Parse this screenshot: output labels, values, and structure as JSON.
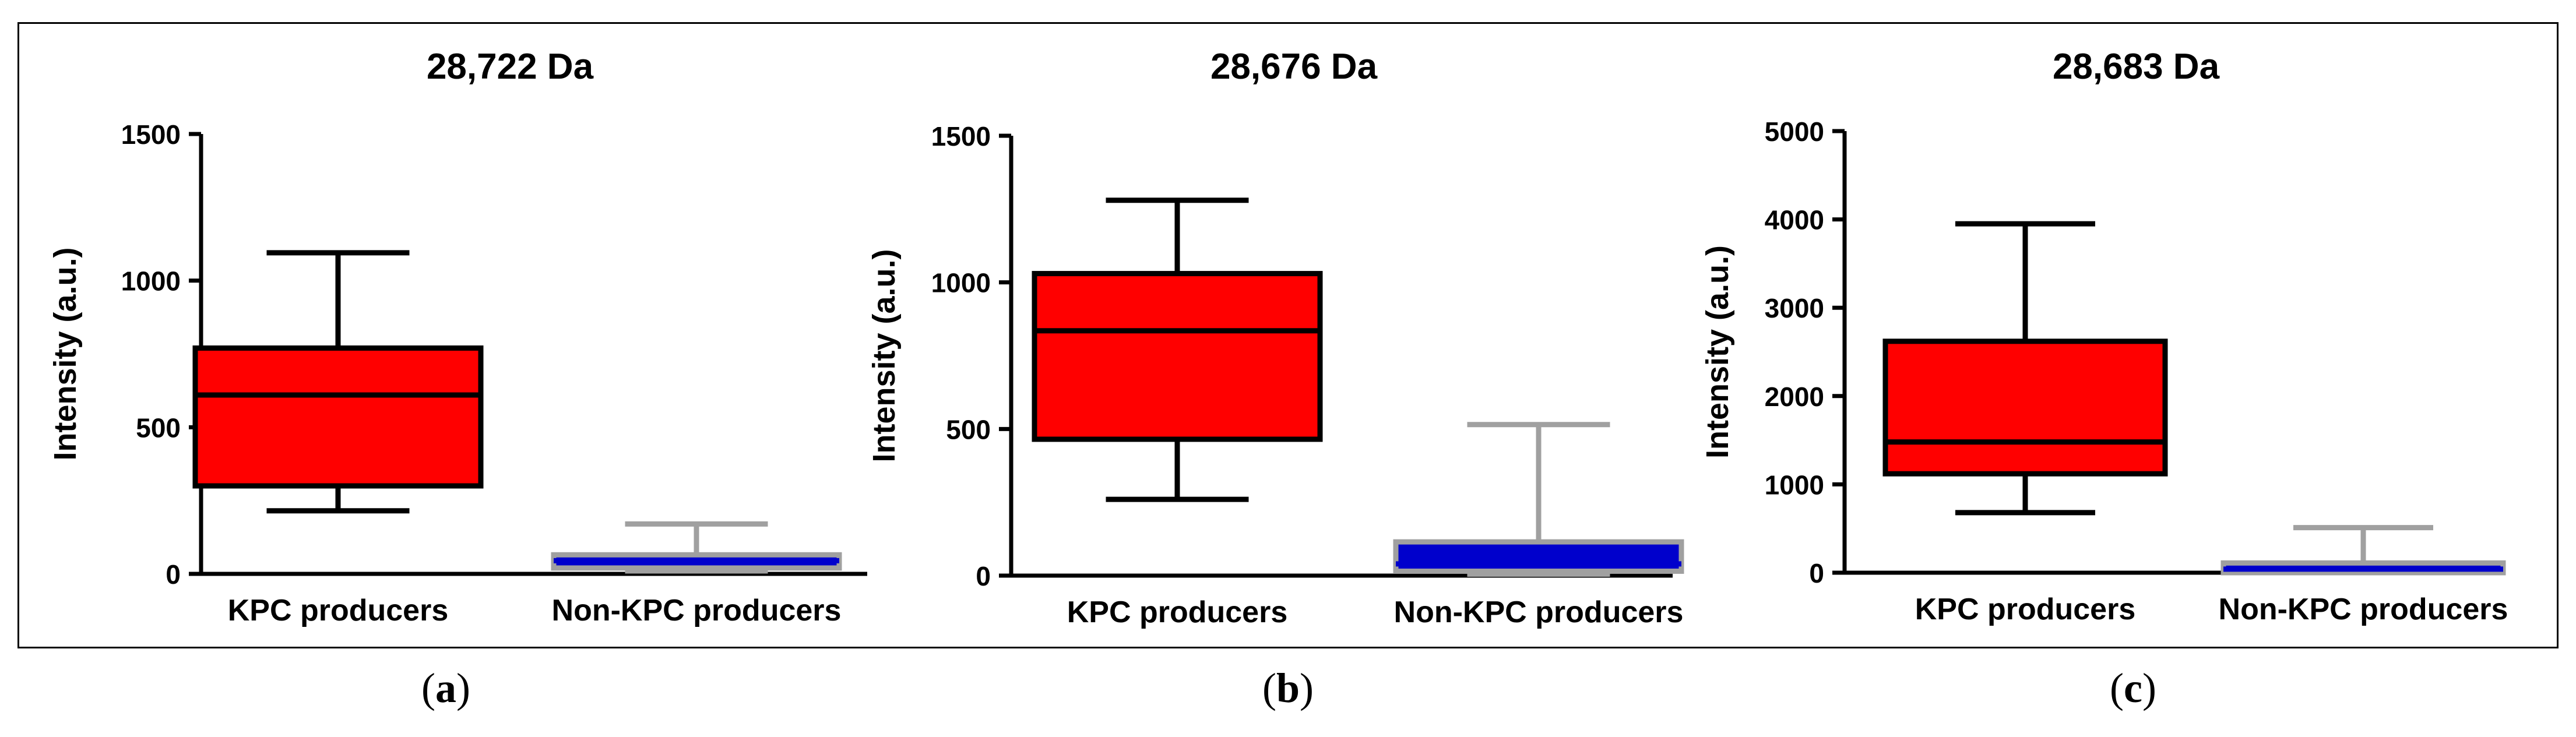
{
  "chart_data": [
    {
      "type": "box",
      "title": "28,722 Da",
      "ylabel": "Intensity (a.u.)",
      "xlabel": "",
      "ylim": [
        0,
        1500
      ],
      "yticks": [
        0,
        500,
        1000,
        1500
      ],
      "categories": [
        "KPC producers",
        "Non-KPC producers"
      ],
      "boxes": [
        {
          "name": "KPC producers",
          "min": 215,
          "q1": 300,
          "median": 610,
          "q3": 770,
          "max": 1095,
          "fill": "#ff0000",
          "stroke": "#000000"
        },
        {
          "name": "Non-KPC producers",
          "min": 10,
          "q1": 20,
          "median": 45,
          "q3": 65,
          "max": 170,
          "fill": "#0000cc",
          "stroke": "#a0a0a0"
        }
      ],
      "caption": "a"
    },
    {
      "type": "box",
      "title": "28,676 Da",
      "ylabel": "Intensity (a.u.)",
      "xlabel": "",
      "ylim": [
        0,
        1500
      ],
      "yticks": [
        0,
        500,
        1000,
        1500
      ],
      "categories": [
        "KPC producers",
        "Non-KPC producers"
      ],
      "boxes": [
        {
          "name": "KPC producers",
          "min": 260,
          "q1": 465,
          "median": 835,
          "q3": 1030,
          "max": 1280,
          "fill": "#ff0000",
          "stroke": "#000000"
        },
        {
          "name": "Non-KPC producers",
          "min": 5,
          "q1": 15,
          "median": 40,
          "q3": 115,
          "max": 515,
          "fill": "#0000cc",
          "stroke": "#a0a0a0"
        }
      ],
      "caption": "b"
    },
    {
      "type": "box",
      "title": "28,683 Da",
      "ylabel": "Intensity (a.u.)",
      "xlabel": "",
      "ylim": [
        0,
        5000
      ],
      "yticks": [
        0,
        1000,
        2000,
        3000,
        4000,
        5000
      ],
      "categories": [
        "KPC producers",
        "Non-KPC producers"
      ],
      "boxes": [
        {
          "name": "KPC producers",
          "min": 680,
          "q1": 1120,
          "median": 1480,
          "q3": 2620,
          "max": 3950,
          "fill": "#ff0000",
          "stroke": "#000000"
        },
        {
          "name": "Non-KPC producers",
          "min": 0,
          "q1": 0,
          "median": 40,
          "q3": 110,
          "max": 510,
          "fill": "#0000cc",
          "stroke": "#a0a0a0"
        }
      ],
      "caption": "c"
    }
  ]
}
